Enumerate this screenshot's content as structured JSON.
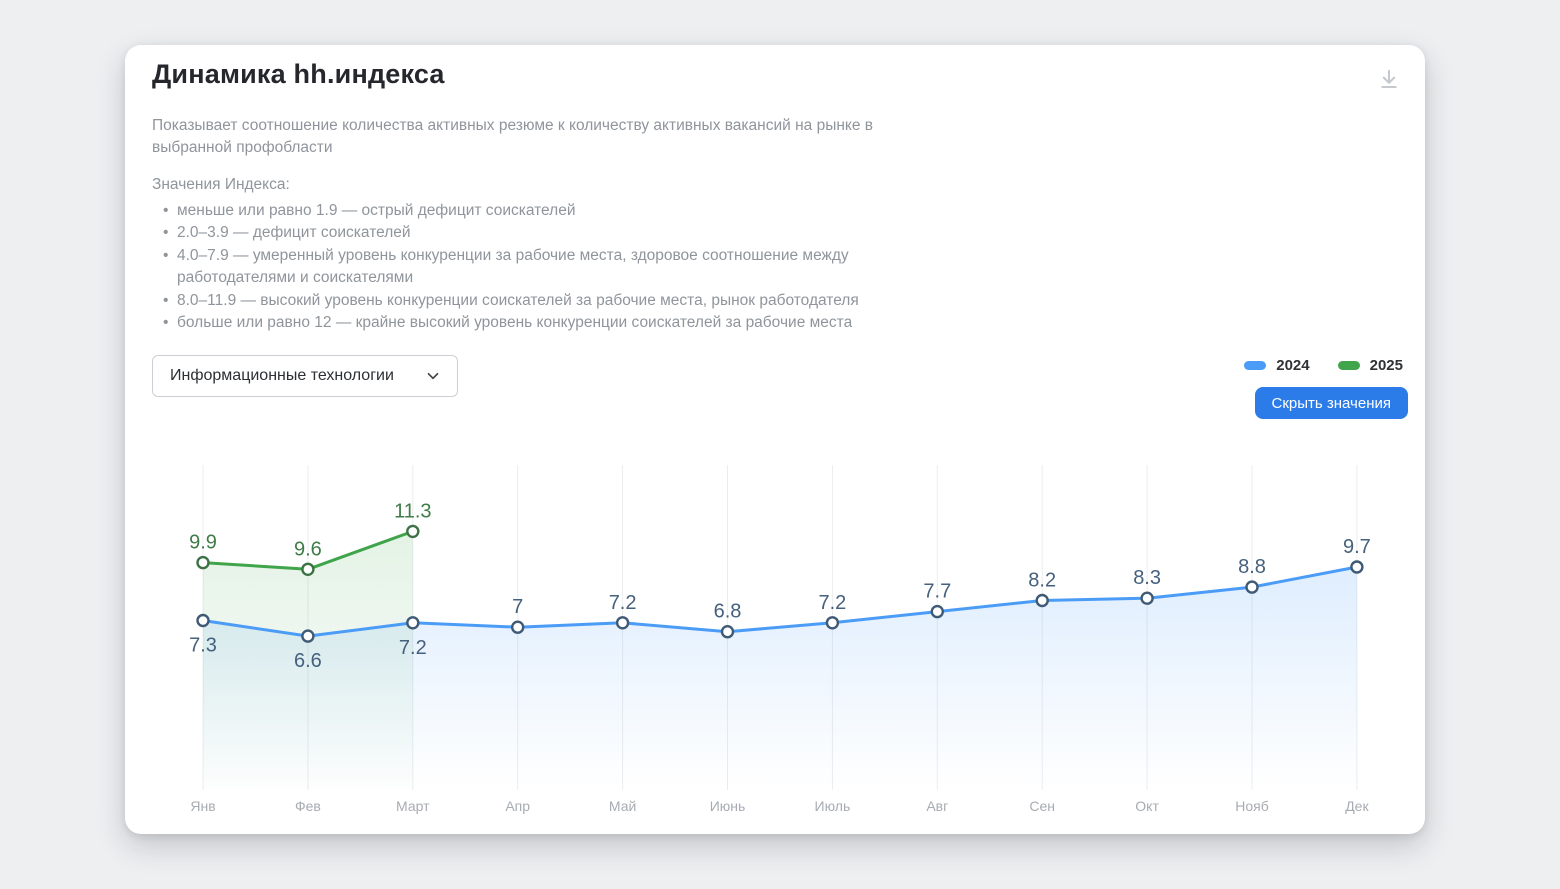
{
  "card": {
    "title": "Динамика hh.индекса",
    "description": "Показывает соотношение количества активных резюме к количеству активных вакансий на рынке в выбранной профобласти",
    "index_legend": {
      "heading": "Значения Индекса:",
      "items": [
        "меньше или равно 1.9 — острый дефицит соискателей",
        "2.0–3.9 — дефицит соискателей",
        "4.0–7.9 — умеренный уровень конкуренции за рабочие места, здоровое соотношение между работодателями и соискателями",
        "8.0–11.9 — высокий уровень конкуренции соискателей за рабочие места, рынок работодателя",
        "больше или равно 12 — крайне высокий уровень конкуренции соискателей за рабочие места"
      ]
    }
  },
  "controls": {
    "profession_dropdown": {
      "value": "Информационные технологии"
    },
    "hide_values_button": "Скрыть значения"
  },
  "icons": {
    "header_action": "download-icon",
    "dropdown": "chevron-down-icon"
  },
  "colors": {
    "accent_button": "#2b7ce9",
    "series_2024": "#4b9cf6",
    "series_2025": "#3fa44a",
    "grid": "#eaedef",
    "axis_text": "#a7acb2",
    "muted_text": "#8f959b"
  },
  "legend": {
    "items": [
      {
        "label": "2024",
        "color": "#4b9cf6"
      },
      {
        "label": "2025",
        "color": "#3fa44a"
      }
    ]
  },
  "chart_data": {
    "type": "line",
    "title": "Динамика hh.индекса",
    "xlabel": "",
    "ylabel": "",
    "categories": [
      "Янв",
      "Фев",
      "Март",
      "Апр",
      "Май",
      "Июнь",
      "Июль",
      "Авг",
      "Сен",
      "Окт",
      "Нояб",
      "Дек"
    ],
    "series": [
      {
        "name": "2024",
        "color": "#4b9cf6",
        "marker_stroke": "#3f5a75",
        "label_color": "#46617d",
        "area_opacity": [
          0.18,
          0
        ],
        "values": [
          7.3,
          6.6,
          7.2,
          7,
          7.2,
          6.8,
          7.2,
          7.7,
          8.2,
          8.3,
          8.8,
          9.7
        ],
        "label_side": [
          "below",
          "below",
          "below",
          "above",
          "above",
          "above",
          "above",
          "above",
          "above",
          "above",
          "above",
          "above"
        ]
      },
      {
        "name": "2025",
        "color": "#3fa44a",
        "marker_stroke": "#3c7246",
        "label_color": "#3f7c48",
        "area_opacity": [
          0.14,
          0.01
        ],
        "values": [
          9.9,
          9.6,
          11.3
        ],
        "label_side": [
          "above",
          "above",
          "above"
        ]
      }
    ],
    "ylim": [
      -0.3,
      14.5
    ],
    "grid": "vertical",
    "legend_position": "top-right",
    "value_labels": true
  }
}
